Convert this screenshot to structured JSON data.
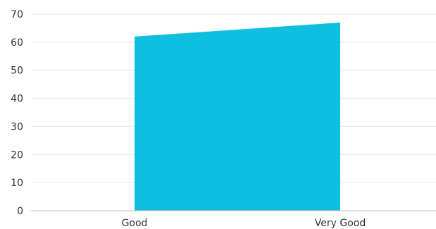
{
  "chart_data": {
    "type": "area",
    "categories": [
      "Good",
      "Very Good"
    ],
    "series": [
      {
        "values": [
          62,
          67
        ]
      }
    ],
    "yticks": [
      0,
      10,
      20,
      30,
      40,
      50,
      60,
      70
    ],
    "ylim": [
      0,
      70
    ],
    "grid": true,
    "legend": "none",
    "colors": {
      "area": "#0ebfe0",
      "grid": "#e6e6e6",
      "axis": "#bdbdbd",
      "text": "#333333"
    }
  }
}
